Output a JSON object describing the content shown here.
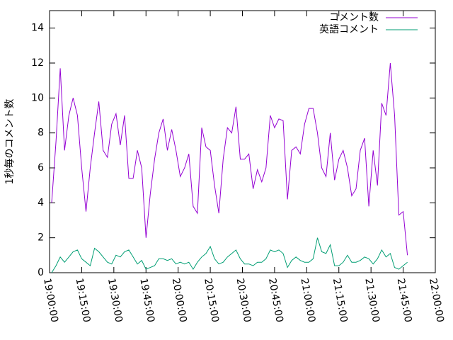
{
  "chart_data": {
    "type": "line",
    "ylabel": "1秒毎のコメント数",
    "x": [
      "19:01:00",
      "19:03:00",
      "19:05:00",
      "19:07:00",
      "19:09:00",
      "19:11:00",
      "19:13:00",
      "19:15:00",
      "19:17:00",
      "19:19:00",
      "19:21:00",
      "19:23:00",
      "19:25:00",
      "19:27:00",
      "19:29:00",
      "19:31:00",
      "19:33:00",
      "19:35:00",
      "19:37:00",
      "19:39:00",
      "19:41:00",
      "19:43:00",
      "19:45:00",
      "19:47:00",
      "19:49:00",
      "19:51:00",
      "19:53:00",
      "19:55:00",
      "19:57:00",
      "19:59:00",
      "20:01:00",
      "20:03:00",
      "20:05:00",
      "20:07:00",
      "20:09:00",
      "20:11:00",
      "20:13:00",
      "20:15:00",
      "20:17:00",
      "20:19:00",
      "20:21:00",
      "20:23:00",
      "20:25:00",
      "20:27:00",
      "20:29:00",
      "20:31:00",
      "20:33:00",
      "20:35:00",
      "20:37:00",
      "20:39:00",
      "20:41:00",
      "20:43:00",
      "20:45:00",
      "20:47:00",
      "20:49:00",
      "20:51:00",
      "20:53:00",
      "20:55:00",
      "20:57:00",
      "20:59:00",
      "21:01:00",
      "21:03:00",
      "21:05:00",
      "21:07:00",
      "21:09:00",
      "21:11:00",
      "21:13:00",
      "21:15:00",
      "21:17:00",
      "21:19:00",
      "21:21:00",
      "21:23:00",
      "21:25:00",
      "21:27:00",
      "21:29:00",
      "21:31:00",
      "21:33:00",
      "21:35:00",
      "21:37:00",
      "21:39:00",
      "21:41:00",
      "21:43:00",
      "21:45:00",
      "21:47:00"
    ],
    "series": [
      {
        "name": "コメント数",
        "color": "#9400d3",
        "values": [
          4.0,
          7.5,
          11.7,
          7.0,
          9.0,
          10.0,
          9.0,
          6.0,
          3.5,
          6.0,
          8.0,
          9.8,
          7.0,
          6.6,
          8.5,
          9.1,
          7.3,
          9.0,
          5.4,
          5.4,
          7.0,
          6.0,
          2.0,
          4.5,
          6.5,
          8.0,
          8.8,
          7.0,
          8.2,
          7.0,
          5.5,
          6.0,
          6.8,
          3.8,
          3.4,
          8.3,
          7.2,
          7.0,
          5.0,
          3.4,
          6.5,
          8.3,
          8.0,
          9.5,
          6.5,
          6.5,
          6.8,
          4.8,
          5.9,
          5.2,
          6.0,
          9.0,
          8.3,
          8.8,
          8.7,
          4.2,
          7.0,
          7.2,
          6.8,
          8.5,
          9.4,
          9.4,
          8.0,
          6.0,
          5.5,
          8.0,
          5.3,
          6.5,
          7.0,
          6.0,
          4.4,
          4.8,
          7.0,
          7.7,
          3.8,
          7.0,
          5.0,
          9.7,
          9.0,
          12.0,
          9.0,
          3.3,
          3.5,
          1.0
        ]
      },
      {
        "name": "英語コメント",
        "color": "#009e73",
        "values": [
          0,
          0.4,
          0.9,
          0.6,
          0.9,
          1.2,
          1.3,
          0.8,
          0.6,
          0.4,
          1.4,
          1.2,
          0.9,
          0.6,
          0.5,
          1.0,
          0.9,
          1.2,
          1.3,
          0.9,
          0.5,
          0.7,
          0.2,
          0.3,
          0.4,
          0.8,
          0.8,
          0.7,
          0.8,
          0.5,
          0.6,
          0.5,
          0.6,
          0.2,
          0.6,
          0.9,
          1.1,
          1.5,
          0.8,
          0.5,
          0.6,
          0.9,
          1.1,
          1.3,
          0.8,
          0.5,
          0.5,
          0.4,
          0.6,
          0.6,
          0.8,
          1.3,
          1.2,
          1.3,
          1.1,
          0.3,
          0.7,
          0.9,
          0.7,
          0.6,
          0.6,
          0.8,
          2.0,
          1.2,
          1.1,
          1.6,
          0.4,
          0.4,
          0.6,
          1.0,
          0.6,
          0.6,
          0.7,
          0.9,
          0.8,
          0.5,
          0.8,
          1.3,
          0.9,
          1.1,
          0.3,
          0.2,
          0.4,
          0.6
        ]
      }
    ],
    "xlim": [
      "19:00:00",
      "22:00:00"
    ],
    "xticks": [
      "19:00:00",
      "19:15:00",
      "19:30:00",
      "19:45:00",
      "20:00:00",
      "20:15:00",
      "20:30:00",
      "20:45:00",
      "21:00:00",
      "21:15:00",
      "21:30:00",
      "21:45:00",
      "22:00:00"
    ],
    "ylim": [
      0,
      15
    ],
    "yticks": [
      0,
      2,
      4,
      6,
      8,
      10,
      12,
      14
    ],
    "legend": "top-right"
  }
}
